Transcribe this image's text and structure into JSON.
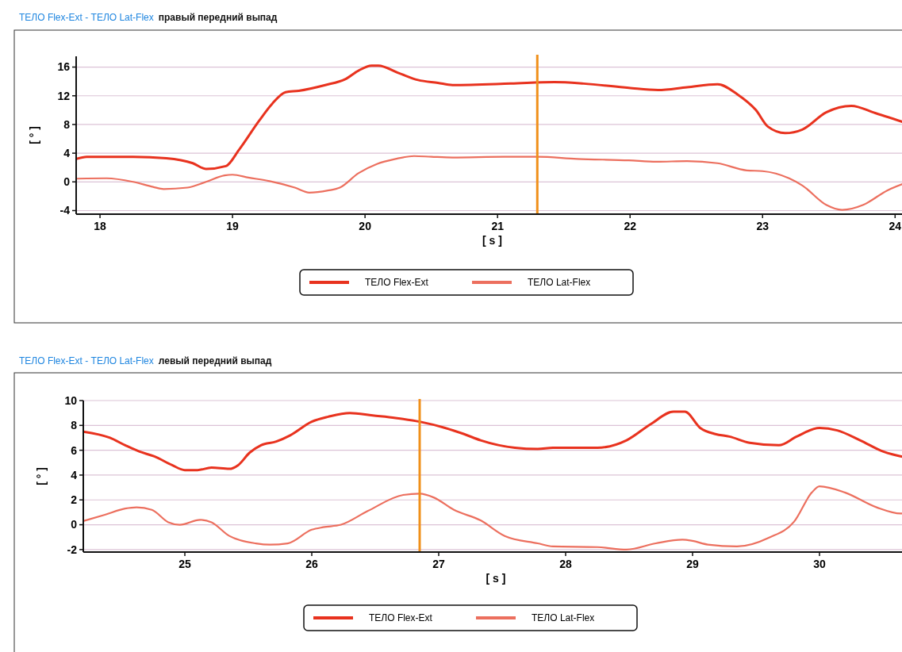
{
  "chart_data": [
    {
      "type": "line",
      "title": "ТЕЛО  Flex-Ext -  ТЕЛО  Lat-Flex",
      "subtitle": "правый передний выпад",
      "xlabel": "[ s ]",
      "ylabel": "[ ° ]",
      "xlim": [
        17.82,
        24.1
      ],
      "xticks": [
        18,
        19,
        20,
        21,
        22,
        23,
        24
      ],
      "ylim": [
        -4.5,
        17.5
      ],
      "yticks": [
        -4,
        0,
        4,
        8,
        12,
        16
      ],
      "grid": "y",
      "legend": "bottom",
      "marker": "none",
      "line_style": "solid",
      "ref_lines": [
        {
          "axis": "x",
          "value": 21.3,
          "color": "#f0901a"
        }
      ],
      "series": [
        {
          "name": "ТЕЛО  Flex-Ext",
          "color": "#e8321e",
          "x": [
            17.82,
            17.9,
            18.25,
            18.5,
            18.7,
            18.8,
            18.95,
            19.05,
            19.2,
            19.3,
            19.4,
            19.5,
            19.7,
            19.85,
            19.95,
            20.05,
            20.1,
            20.25,
            20.4,
            20.55,
            20.66,
            21.1,
            21.43,
            21.65,
            21.99,
            22.21,
            22.43,
            22.66,
            22.81,
            22.95,
            23.04,
            23.17,
            23.3,
            23.48,
            23.67,
            23.85,
            24.1
          ],
          "values": [
            3.2,
            3.5,
            3.5,
            3.3,
            2.6,
            1.8,
            2.2,
            4.5,
            8.5,
            10.9,
            12.5,
            12.7,
            13.5,
            14.3,
            15.5,
            16.2,
            16.2,
            15.2,
            14.2,
            13.8,
            13.5,
            13.7,
            13.9,
            13.7,
            13.1,
            12.8,
            13.2,
            13.6,
            12.2,
            10.0,
            7.7,
            6.8,
            7.3,
            9.7,
            10.6,
            9.6,
            8.1
          ]
        },
        {
          "name": "ТЕЛО  Lat-Flex",
          "color": "#ec6f5e",
          "x": [
            17.83,
            18.05,
            18.25,
            18.4,
            18.48,
            18.66,
            18.8,
            18.94,
            19.0,
            19.12,
            19.28,
            19.47,
            19.58,
            19.72,
            19.81,
            19.95,
            20.09,
            20.23,
            20.37,
            20.5,
            20.66,
            21.05,
            21.3,
            21.6,
            21.99,
            22.2,
            22.43,
            22.66,
            22.88,
            23.0,
            23.2,
            23.3,
            23.48,
            23.6,
            23.76,
            23.94,
            24.1
          ],
          "values": [
            0.45,
            0.5,
            0.0,
            -0.7,
            -1.0,
            -0.8,
            0.0,
            0.9,
            1.0,
            0.6,
            0.1,
            -0.8,
            -1.5,
            -1.2,
            -0.8,
            1.2,
            2.5,
            3.2,
            3.6,
            3.5,
            3.4,
            3.5,
            3.5,
            3.2,
            3.0,
            2.8,
            2.9,
            2.6,
            1.6,
            1.5,
            0.5,
            -0.5,
            -3.2,
            -3.9,
            -3.2,
            -1.2,
            0.0
          ]
        }
      ]
    },
    {
      "type": "line",
      "title": "ТЕЛО    Flex-Ext -  ТЕЛО    Lat-Flex",
      "subtitle": "левый передний выпад",
      "xlabel": "[ s ]",
      "ylabel": "[ ° ]",
      "xlim": [
        24.2,
        30.7
      ],
      "xticks": [
        25,
        26,
        27,
        28,
        29,
        30
      ],
      "ylim": [
        -2.2,
        10
      ],
      "yticks": [
        -2,
        0,
        2,
        4,
        6,
        8,
        10
      ],
      "grid": "y",
      "legend": "bottom",
      "marker": "none",
      "line_style": "solid",
      "ref_lines": [
        {
          "axis": "x",
          "value": 26.85,
          "color": "#f0901a"
        }
      ],
      "series": [
        {
          "name": "ТЕЛО  Flex-Ext",
          "color": "#e8321e",
          "x": [
            24.2,
            24.41,
            24.53,
            24.64,
            24.76,
            24.9,
            25.0,
            25.1,
            25.21,
            25.35,
            25.42,
            25.51,
            25.6,
            25.72,
            25.83,
            26.0,
            26.13,
            26.3,
            26.48,
            26.66,
            26.85,
            27.05,
            27.2,
            27.33,
            27.6,
            27.78,
            27.9,
            28.25,
            28.48,
            28.67,
            28.85,
            28.94,
            29.06,
            29.18,
            29.29,
            29.45,
            29.68,
            29.82,
            30.0,
            30.14,
            30.32,
            30.5,
            30.69
          ],
          "values": [
            7.5,
            7.0,
            6.4,
            5.9,
            5.5,
            4.8,
            4.4,
            4.4,
            4.6,
            4.5,
            4.8,
            5.8,
            6.4,
            6.7,
            7.2,
            8.3,
            8.7,
            9.0,
            8.8,
            8.6,
            8.3,
            7.8,
            7.3,
            6.8,
            6.2,
            6.1,
            6.2,
            6.2,
            6.8,
            8.1,
            9.1,
            9.1,
            7.8,
            7.3,
            7.1,
            6.6,
            6.4,
            7.1,
            7.8,
            7.6,
            6.8,
            5.9,
            5.4
          ]
        },
        {
          "name": "ТЕЛО  Lat-Flex",
          "color": "#ec6f5e",
          "x": [
            24.2,
            24.37,
            24.53,
            24.62,
            24.74,
            24.87,
            24.96,
            25.12,
            25.21,
            25.35,
            25.56,
            25.67,
            25.81,
            26.0,
            26.09,
            26.23,
            26.44,
            26.72,
            26.85,
            26.96,
            27.12,
            27.33,
            27.52,
            27.78,
            27.9,
            28.25,
            28.48,
            28.71,
            28.92,
            29.0,
            29.12,
            29.35,
            29.6,
            29.8,
            29.94,
            30.0,
            30.2,
            30.45,
            30.64,
            30.69
          ],
          "values": [
            0.3,
            0.8,
            1.3,
            1.4,
            1.2,
            0.2,
            0.0,
            0.4,
            0.2,
            -0.9,
            -1.5,
            -1.6,
            -1.5,
            -0.4,
            -0.2,
            0.0,
            1.1,
            2.4,
            2.5,
            2.2,
            1.2,
            0.35,
            -0.9,
            -1.5,
            -1.75,
            -1.8,
            -2.0,
            -1.5,
            -1.2,
            -1.3,
            -1.6,
            -1.75,
            -1.05,
            0.25,
            2.6,
            3.1,
            2.6,
            1.4,
            0.9,
            0.9
          ]
        }
      ]
    }
  ]
}
